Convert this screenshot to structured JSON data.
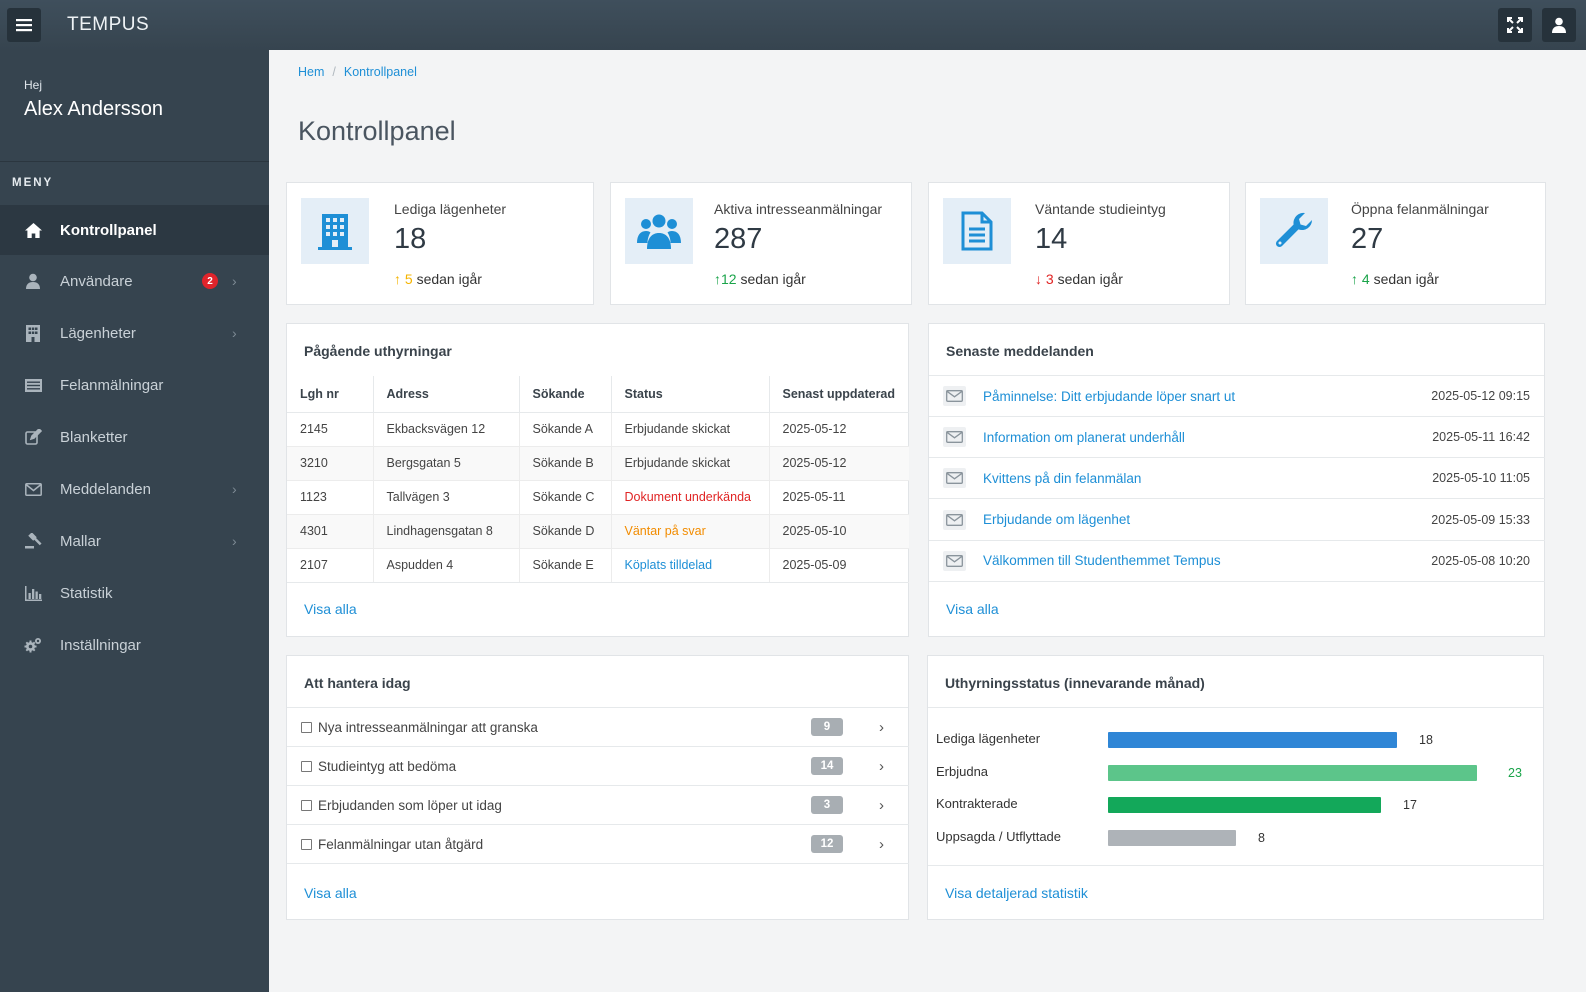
{
  "app": {
    "brand": "TEMPUS"
  },
  "user": {
    "greeting": "Hej",
    "name": "Alex Andersson"
  },
  "sidebar": {
    "menu_header": "MENY",
    "items": [
      {
        "label": "Kontrollpanel",
        "icon": "home-icon",
        "active": true
      },
      {
        "label": "Användare",
        "icon": "user-icon",
        "badge": "2",
        "has_children": true
      },
      {
        "label": "Lägenheter",
        "icon": "building-icon",
        "has_children": true
      },
      {
        "label": "Felanmälningar",
        "icon": "list-icon"
      },
      {
        "label": "Blanketter",
        "icon": "edit-icon"
      },
      {
        "label": "Meddelanden",
        "icon": "envelope-icon",
        "has_children": true
      },
      {
        "label": "Mallar",
        "icon": "gavel-icon",
        "has_children": true
      },
      {
        "label": "Statistik",
        "icon": "bar-chart-icon"
      },
      {
        "label": "Inställningar",
        "icon": "cogs-icon"
      }
    ]
  },
  "breadcrumb": {
    "home": "Hem",
    "separator": "/",
    "current": "Kontrollpanel"
  },
  "page_title": "Kontrollpanel",
  "stats": [
    {
      "label": "Lediga lägenheter",
      "value": "18",
      "trend_arrow": "↑",
      "trend_value": "5",
      "trend_suffix": "sedan igår",
      "trend_color": "#f5b400",
      "icon": "building-icon"
    },
    {
      "label": "Aktiva intresseanmälningar",
      "value": "287",
      "trend_arrow": "↑",
      "trend_value": "12",
      "trend_suffix": "sedan igår",
      "trend_color": "#1aa44a",
      "icon": "users-icon"
    },
    {
      "label": "Väntande studieintyg",
      "value": "14",
      "trend_arrow": "↓",
      "trend_value": "3",
      "trend_suffix": "sedan igår",
      "trend_color": "#e02424",
      "icon": "document-icon"
    },
    {
      "label": "Öppna felanmälningar",
      "value": "27",
      "trend_arrow": "↑",
      "trend_value": "4",
      "trend_suffix": "sedan igår",
      "trend_color": "#1aa44a",
      "icon": "wrench-icon"
    }
  ],
  "rentals": {
    "title": "Pågående uthyrningar",
    "columns": [
      "Lgh nr",
      "Adress",
      "Sökande",
      "Status",
      "Senast uppdaterad"
    ],
    "rows": [
      {
        "nr": "2145",
        "address": "Ekbacksvägen 12",
        "applicant": "Sökande A",
        "status": "Erbjudande skickat",
        "status_color": "#444444",
        "updated": "2025-05-12"
      },
      {
        "nr": "3210",
        "address": "Bergsgatan 5",
        "applicant": "Sökande B",
        "status": "Erbjudande skickat",
        "status_color": "#444444",
        "updated": "2025-05-12"
      },
      {
        "nr": "1123",
        "address": "Tallvägen 3",
        "applicant": "Sökande C",
        "status": "Dokument underkända",
        "status_color": "#e02424",
        "updated": "2025-05-11"
      },
      {
        "nr": "4301",
        "address": "Lindhagensgatan 8",
        "applicant": "Sökande D",
        "status": "Väntar på svar",
        "status_color": "#f28c00",
        "updated": "2025-05-10"
      },
      {
        "nr": "2107",
        "address": "Aspudden 4",
        "applicant": "Sökande E",
        "status": "Köplats tilldelad",
        "status_color": "#1e8fd6",
        "updated": "2025-05-09"
      }
    ],
    "view_all": "Visa alla"
  },
  "messages": {
    "title": "Senaste meddelanden",
    "items": [
      {
        "text": "Påminnelse: Ditt erbjudande löper snart ut",
        "date": "2025-05-12 09:15"
      },
      {
        "text": "Information om planerat underhåll",
        "date": "2025-05-11 16:42"
      },
      {
        "text": "Kvittens på din felanmälan",
        "date": "2025-05-10 11:05"
      },
      {
        "text": "Erbjudande om lägenhet",
        "date": "2025-05-09 15:33"
      },
      {
        "text": "Välkommen till Studenthemmet Tempus",
        "date": "2025-05-08 10:20"
      }
    ],
    "view_all": "Visa alla"
  },
  "todo": {
    "title": "Att hantera idag",
    "items": [
      {
        "text": "Nya intresseanmälningar att granska",
        "count": "9"
      },
      {
        "text": "Studieintyg att bedöma",
        "count": "14"
      },
      {
        "text": "Erbjudanden som löper ut idag",
        "count": "3"
      },
      {
        "text": "Felanmälningar utan åtgärd",
        "count": "12"
      }
    ],
    "view_all": "Visa alla"
  },
  "rental_status": {
    "title": "Uthyrningsstatus (innevarande månad)",
    "view_details": "Visa detaljerad statistik"
  },
  "chart_data": {
    "type": "bar",
    "orientation": "horizontal",
    "title": "Uthyrningsstatus (innevarande månad)",
    "categories": [
      "Lediga lägenheter",
      "Erbjudna",
      "Kontrakterade",
      "Uppsagda / Utflyttade"
    ],
    "values": [
      18,
      23,
      17,
      8
    ],
    "value_labels": [
      "18",
      "23",
      "17",
      "8"
    ],
    "colors": [
      "#2f86d6",
      "#5cc58a",
      "#13a85a",
      "#aeb3b8"
    ],
    "value_label_colors": [
      "#333333",
      "#1aa44a",
      "#333333",
      "#333333"
    ],
    "xlim": [
      0,
      23
    ]
  },
  "colors": {
    "accent": "#1e8fd6",
    "topbar": "#3a4955",
    "sidebar": "#36444f",
    "badge": "#e0242b"
  }
}
